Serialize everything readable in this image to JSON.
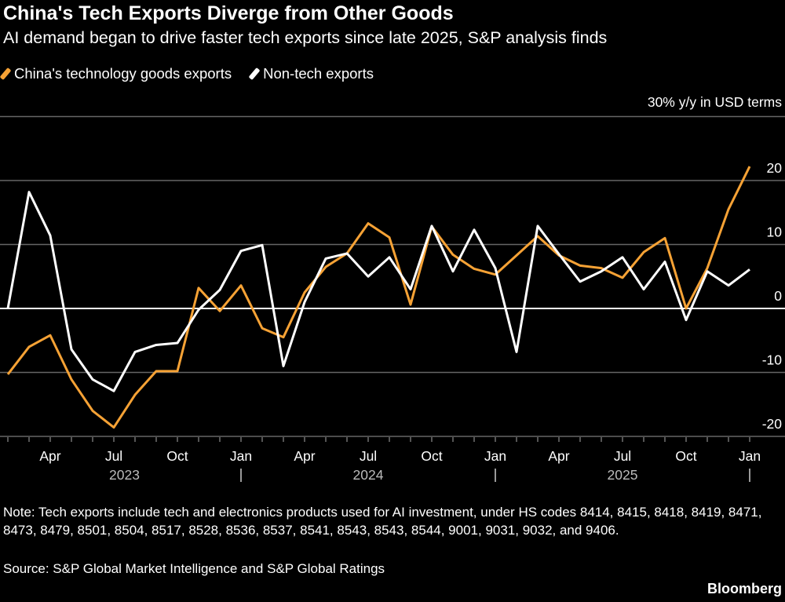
{
  "title": "China's Tech Exports Diverge from Other Goods",
  "subtitle": "AI demand began to drive faster tech exports since late 2025, S&P analysis finds",
  "note": "Note: Tech exports include tech and electronics products used for AI investment, under HS codes 8414, 8415, 8418, 8419, 8471, 8473, 8479, 8501, 8504, 8517, 8528, 8536, 8537, 8541, 8543, 8543, 8544, 9001, 9031, 9032, and 9406.",
  "source": "Source: S&P Global Market Intelligence and S&P Global Ratings",
  "brand": "Bloomberg",
  "colors": {
    "background": "#000000",
    "tech": "#f6a235",
    "nontech": "#ffffff",
    "grid": "#666666"
  },
  "chart_data": {
    "type": "line",
    "unit_label": "30% y/y in USD terms",
    "ylim": [
      -20,
      30
    ],
    "yticks": [
      -20,
      -10,
      0,
      10,
      20,
      30
    ],
    "ytick_labels": [
      "-20",
      "-10",
      "0",
      "10",
      "20",
      ""
    ],
    "grid": true,
    "legend_placement": "top-left",
    "x": [
      "2023-02",
      "2023-03",
      "2023-04",
      "2023-05",
      "2023-06",
      "2023-07",
      "2023-08",
      "2023-09",
      "2023-10",
      "2023-11",
      "2023-12",
      "2024-01",
      "2024-02",
      "2024-03",
      "2024-04",
      "2024-05",
      "2024-06",
      "2024-07",
      "2024-08",
      "2024-09",
      "2024-10",
      "2024-11",
      "2024-12",
      "2025-01",
      "2025-02",
      "2025-03",
      "2025-04",
      "2025-05",
      "2025-06",
      "2025-07",
      "2025-08",
      "2025-09",
      "2025-10",
      "2025-11",
      "2025-12",
      "2026-01"
    ],
    "xtick_labels": [
      {
        "x": "2023-04",
        "label": "Apr"
      },
      {
        "x": "2023-07",
        "label": "Jul"
      },
      {
        "x": "2023-10",
        "label": "Oct"
      },
      {
        "x": "2024-01",
        "label": "Jan"
      },
      {
        "x": "2024-04",
        "label": "Apr"
      },
      {
        "x": "2024-07",
        "label": "Jul"
      },
      {
        "x": "2024-10",
        "label": "Oct"
      },
      {
        "x": "2025-01",
        "label": "Jan"
      },
      {
        "x": "2025-04",
        "label": "Apr"
      },
      {
        "x": "2025-07",
        "label": "Jul"
      },
      {
        "x": "2025-10",
        "label": "Oct"
      },
      {
        "x": "2026-01",
        "label": "Jan"
      }
    ],
    "year_labels": [
      "2023",
      "2024",
      "2025"
    ],
    "series": [
      {
        "name": "China's technology goods exports",
        "color": "#f6a235",
        "values": [
          -10.3,
          -6.0,
          -4.2,
          -11.1,
          -16.0,
          -18.6,
          -13.5,
          -9.8,
          -9.8,
          3.2,
          -0.4,
          3.6,
          -3.1,
          -4.5,
          2.5,
          6.5,
          8.6,
          13.3,
          11.1,
          0.6,
          12.8,
          8.4,
          6.2,
          5.3,
          8.3,
          11.3,
          8.3,
          6.7,
          6.3,
          4.8,
          8.8,
          11.0,
          0.0,
          6.3,
          15.5,
          22.2
        ]
      },
      {
        "name": "Non-tech exports",
        "color": "#ffffff",
        "values": [
          0.0,
          18.2,
          11.4,
          -6.4,
          -11.1,
          -12.9,
          -6.8,
          -5.7,
          -5.4,
          -0.2,
          2.9,
          9.0,
          9.9,
          -9.0,
          1.0,
          7.8,
          8.6,
          5.0,
          8.0,
          3.0,
          12.9,
          5.8,
          12.3,
          6.3,
          -6.8,
          12.9,
          8.5,
          4.2,
          5.8,
          8.0,
          3.0,
          7.3,
          -1.8,
          5.8,
          3.6,
          6.1
        ]
      }
    ]
  }
}
